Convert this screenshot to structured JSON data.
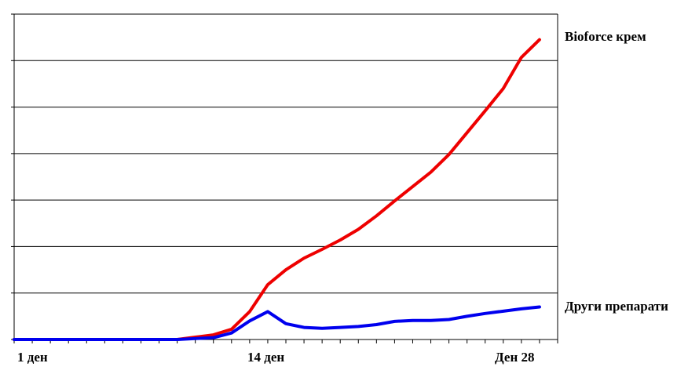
{
  "chart_data": {
    "type": "line",
    "title": "",
    "xlabel": "",
    "ylabel": "",
    "x": [
      1,
      2,
      3,
      4,
      5,
      6,
      7,
      8,
      9,
      10,
      11,
      12,
      13,
      14,
      15,
      16,
      17,
      18,
      19,
      20,
      21,
      22,
      23,
      24,
      25,
      26,
      27,
      28,
      29,
      30
    ],
    "xlim": [
      1,
      31
    ],
    "ylim": [
      0,
      7
    ],
    "y_ticks": [
      0,
      1,
      2,
      3,
      4,
      5,
      6,
      7
    ],
    "x_tick_positions": [
      1,
      14,
      28
    ],
    "x_tick_labels": [
      "1 ден",
      "14 ден",
      "Ден 28"
    ],
    "grid": "horizontal",
    "legend": "inline labels at right",
    "series": [
      {
        "name": "Bioforce крем",
        "color": "#ee0000",
        "values": [
          0,
          0,
          0,
          0,
          0,
          0,
          0,
          0,
          0,
          0,
          0.05,
          0.1,
          0.22,
          0.6,
          1.18,
          1.5,
          1.75,
          1.94,
          2.14,
          2.37,
          2.66,
          2.98,
          3.29,
          3.6,
          3.98,
          4.45,
          4.92,
          5.4,
          6.07,
          6.45
        ]
      },
      {
        "name": "Други препарати",
        "color": "#0000ee",
        "values": [
          0,
          0,
          0,
          0,
          0,
          0,
          0,
          0,
          0,
          0,
          0.02,
          0.04,
          0.14,
          0.4,
          0.6,
          0.34,
          0.26,
          0.24,
          0.26,
          0.28,
          0.32,
          0.39,
          0.41,
          0.41,
          0.43,
          0.5,
          0.56,
          0.61,
          0.66,
          0.7
        ]
      }
    ]
  }
}
